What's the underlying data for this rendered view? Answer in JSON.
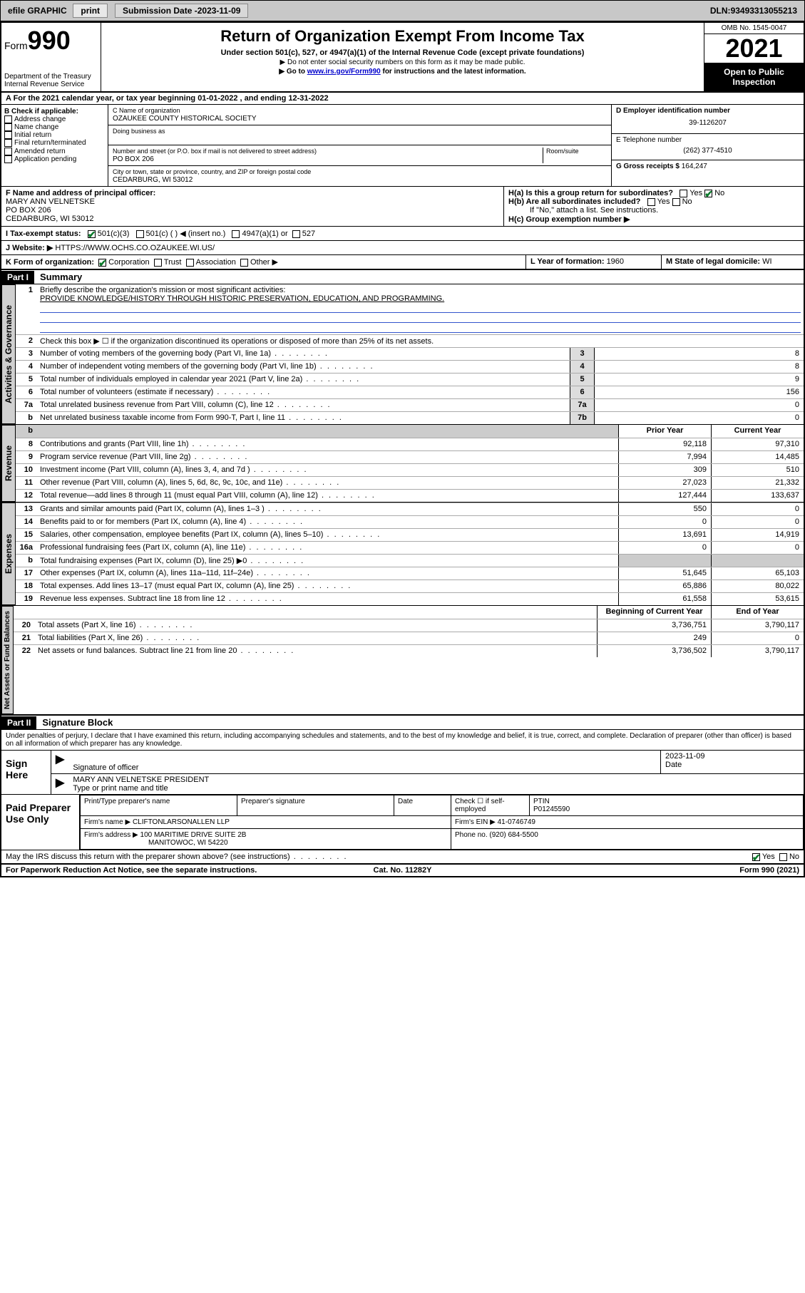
{
  "topbar": {
    "efile": "efile GRAPHIC",
    "print": "print",
    "subdate_label": "Submission Date - ",
    "subdate": "2023-11-09",
    "dln_label": "DLN: ",
    "dln": "93493313055213"
  },
  "header": {
    "form_small": "Form",
    "form_big": "990",
    "title": "Return of Organization Exempt From Income Tax",
    "sub": "Under section 501(c), 527, or 4947(a)(1) of the Internal Revenue Code (except private foundations)",
    "note1": "▶ Do not enter social security numbers on this form as it may be made public.",
    "note2_pre": "▶ Go to ",
    "note2_link": "www.irs.gov/Form990",
    "note2_post": " for instructions and the latest information.",
    "dept": "Department of the Treasury",
    "irs": "Internal Revenue Service",
    "omb": "OMB No. 1545-0047",
    "year": "2021",
    "open": "Open to Public Inspection"
  },
  "rowA": "A  For the 2021 calendar year, or tax year beginning 01-01-2022    , and ending 12-31-2022",
  "colB": {
    "label": "B Check if applicable:",
    "items": [
      "Address change",
      "Name change",
      "Initial return",
      "Final return/terminated",
      "Amended return",
      "Application pending"
    ]
  },
  "colC": {
    "name_lbl": "C Name of organization",
    "name": "OZAUKEE COUNTY HISTORICAL SOCIETY",
    "dba_lbl": "Doing business as",
    "addr_lbl": "Number and street (or P.O. box if mail is not delivered to street address)",
    "room_lbl": "Room/suite",
    "addr": "PO BOX 206",
    "city_lbl": "City or town, state or province, country, and ZIP or foreign postal code",
    "city": "CEDARBURG, WI  53012"
  },
  "colD": {
    "ein_lbl": "D Employer identification number",
    "ein": "39-1126207",
    "tel_lbl": "E Telephone number",
    "tel": "(262) 377-4510",
    "gross_lbl": "G Gross receipts $ ",
    "gross": "164,247"
  },
  "rowF": {
    "lbl": "F  Name and address of principal officer:",
    "name": "MARY ANN VELNETSKE",
    "addr1": "PO BOX 206",
    "addr2": "CEDARBURG, WI  53012"
  },
  "rowH": {
    "ha": "H(a)  Is this a group return for subordinates?",
    "hb": "H(b)  Are all subordinates included?",
    "hb_note": "If \"No,\" attach a list. See instructions.",
    "hc": "H(c)  Group exemption number ▶",
    "yes": "Yes",
    "no": "No"
  },
  "rowI": {
    "lbl": "I    Tax-exempt status:",
    "o1": "501(c)(3)",
    "o2": "501(c) (   ) ◀ (insert no.)",
    "o3": "4947(a)(1) or",
    "o4": "527"
  },
  "rowJ": {
    "lbl": "J    Website: ▶",
    "val": "HTTPS://WWW.OCHS.CO.OZAUKEE.WI.US/"
  },
  "rowK": {
    "lbl": "K Form of organization:",
    "o1": "Corporation",
    "o2": "Trust",
    "o3": "Association",
    "o4": "Other ▶"
  },
  "rowL": {
    "lbl": "L Year of formation: ",
    "val": "1960"
  },
  "rowM": {
    "lbl": "M State of legal domicile: ",
    "val": "WI"
  },
  "part1": {
    "hdr": "Part I",
    "title": "Summary"
  },
  "summary": {
    "l1_lbl": "Briefly describe the organization's mission or most significant activities:",
    "l1_val": "PROVIDE KNOWLEDGE/HISTORY THROUGH HISTORIC PRESERVATION, EDUCATION, AND PROGRAMMING.",
    "l2": "Check this box ▶ ☐  if the organization discontinued its operations or disposed of more than 25% of its net assets.",
    "lines_gov": [
      {
        "n": "3",
        "t": "Number of voting members of the governing body (Part VI, line 1a)",
        "box": "3",
        "v": "8"
      },
      {
        "n": "4",
        "t": "Number of independent voting members of the governing body (Part VI, line 1b)",
        "box": "4",
        "v": "8"
      },
      {
        "n": "5",
        "t": "Total number of individuals employed in calendar year 2021 (Part V, line 2a)",
        "box": "5",
        "v": "9"
      },
      {
        "n": "6",
        "t": "Total number of volunteers (estimate if necessary)",
        "box": "6",
        "v": "156"
      },
      {
        "n": "7a",
        "t": "Total unrelated business revenue from Part VIII, column (C), line 12",
        "box": "7a",
        "v": "0"
      },
      {
        "n": "b",
        "t": "Net unrelated business taxable income from Form 990-T, Part I, line 11",
        "box": "7b",
        "v": "0"
      }
    ],
    "col_prior": "Prior Year",
    "col_curr": "Current Year",
    "revenue": [
      {
        "n": "8",
        "t": "Contributions and grants (Part VIII, line 1h)",
        "p": "92,118",
        "c": "97,310"
      },
      {
        "n": "9",
        "t": "Program service revenue (Part VIII, line 2g)",
        "p": "7,994",
        "c": "14,485"
      },
      {
        "n": "10",
        "t": "Investment income (Part VIII, column (A), lines 3, 4, and 7d )",
        "p": "309",
        "c": "510"
      },
      {
        "n": "11",
        "t": "Other revenue (Part VIII, column (A), lines 5, 6d, 8c, 9c, 10c, and 11e)",
        "p": "27,023",
        "c": "21,332"
      },
      {
        "n": "12",
        "t": "Total revenue—add lines 8 through 11 (must equal Part VIII, column (A), line 12)",
        "p": "127,444",
        "c": "133,637"
      }
    ],
    "expenses": [
      {
        "n": "13",
        "t": "Grants and similar amounts paid (Part IX, column (A), lines 1–3 )",
        "p": "550",
        "c": "0"
      },
      {
        "n": "14",
        "t": "Benefits paid to or for members (Part IX, column (A), line 4)",
        "p": "0",
        "c": "0"
      },
      {
        "n": "15",
        "t": "Salaries, other compensation, employee benefits (Part IX, column (A), lines 5–10)",
        "p": "13,691",
        "c": "14,919"
      },
      {
        "n": "16a",
        "t": "Professional fundraising fees (Part IX, column (A), line 11e)",
        "p": "0",
        "c": "0"
      },
      {
        "n": "b",
        "t": "Total fundraising expenses (Part IX, column (D), line 25) ▶0",
        "p": "",
        "c": "",
        "shade": true
      },
      {
        "n": "17",
        "t": "Other expenses (Part IX, column (A), lines 11a–11d, 11f–24e)",
        "p": "51,645",
        "c": "65,103"
      },
      {
        "n": "18",
        "t": "Total expenses. Add lines 13–17 (must equal Part IX, column (A), line 25)",
        "p": "65,886",
        "c": "80,022"
      },
      {
        "n": "19",
        "t": "Revenue less expenses. Subtract line 18 from line 12",
        "p": "61,558",
        "c": "53,615"
      }
    ],
    "col_beg": "Beginning of Current Year",
    "col_end": "End of Year",
    "netassets": [
      {
        "n": "20",
        "t": "Total assets (Part X, line 16)",
        "p": "3,736,751",
        "c": "3,790,117"
      },
      {
        "n": "21",
        "t": "Total liabilities (Part X, line 26)",
        "p": "249",
        "c": "0"
      },
      {
        "n": "22",
        "t": "Net assets or fund balances. Subtract line 21 from line 20",
        "p": "3,736,502",
        "c": "3,790,117"
      }
    ]
  },
  "vtabs": {
    "gov": "Activities & Governance",
    "rev": "Revenue",
    "exp": "Expenses",
    "net": "Net Assets or Fund Balances"
  },
  "part2": {
    "hdr": "Part II",
    "title": "Signature Block"
  },
  "sig": {
    "decl": "Under penalties of perjury, I declare that I have examined this return, including accompanying schedules and statements, and to the best of my knowledge and belief, it is true, correct, and complete. Declaration of preparer (other than officer) is based on all information of which preparer has any knowledge.",
    "sign_here": "Sign Here",
    "sig_officer": "Signature of officer",
    "date": "Date",
    "sig_date": "2023-11-09",
    "officer_name": "MARY ANN VELNETSKE  PRESIDENT",
    "type_name": "Type or print name and title",
    "paid": "Paid Preparer Use Only",
    "prep_name_lbl": "Print/Type preparer's name",
    "prep_sig_lbl": "Preparer's signature",
    "prep_date_lbl": "Date",
    "check_if": "Check ☐ if self-employed",
    "ptin_lbl": "PTIN",
    "ptin": "P01245590",
    "firm_name_lbl": "Firm's name    ▶ ",
    "firm_name": "CLIFTONLARSONALLEN LLP",
    "firm_ein_lbl": "Firm's EIN ▶ ",
    "firm_ein": "41-0746749",
    "firm_addr_lbl": "Firm's address ▶ ",
    "firm_addr1": "100 MARITIME DRIVE SUITE 2B",
    "firm_addr2": "MANITOWOC, WI  54220",
    "phone_lbl": "Phone no. ",
    "phone": "(920) 684-5500",
    "discuss": "May the IRS discuss this return with the preparer shown above? (see instructions)"
  },
  "footer": {
    "left": "For Paperwork Reduction Act Notice, see the separate instructions.",
    "mid": "Cat. No. 11282Y",
    "right": "Form 990 (2021)"
  }
}
